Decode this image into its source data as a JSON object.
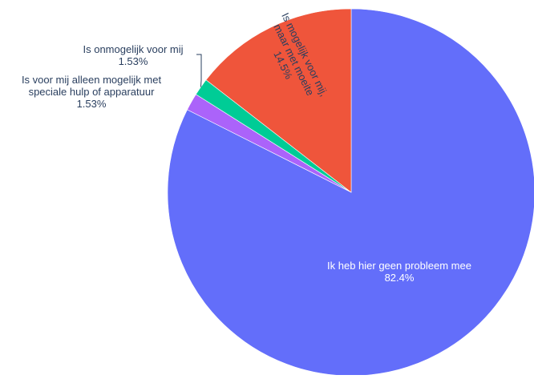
{
  "chart_data": {
    "type": "pie",
    "title": "",
    "slices": [
      {
        "label": "Ik heb hier geen probleem mee",
        "value": 82.4,
        "display": "82.4%",
        "color": "#636efa"
      },
      {
        "label": "Is voor mij alleen mogelijk met speciale hulp of apparatuur",
        "label_lines": [
          "Is voor mij alleen mogelijk met",
          "speciale hulp of apparatuur"
        ],
        "value": 1.53,
        "display": "1.53%",
        "color": "#ab63fa"
      },
      {
        "label": "Is onmogelijk voor mij",
        "value": 1.53,
        "display": "1.53%",
        "color": "#00cc96"
      },
      {
        "label": "Is mogelijk voor mij, maar met moeite",
        "label_lines": [
          "Is mogelijk voor mij,",
          "maar met moeite"
        ],
        "value": 14.5,
        "display": "14.5%",
        "color": "#ef553b"
      }
    ],
    "direction": "clockwise",
    "start": "top",
    "legend": "none"
  }
}
